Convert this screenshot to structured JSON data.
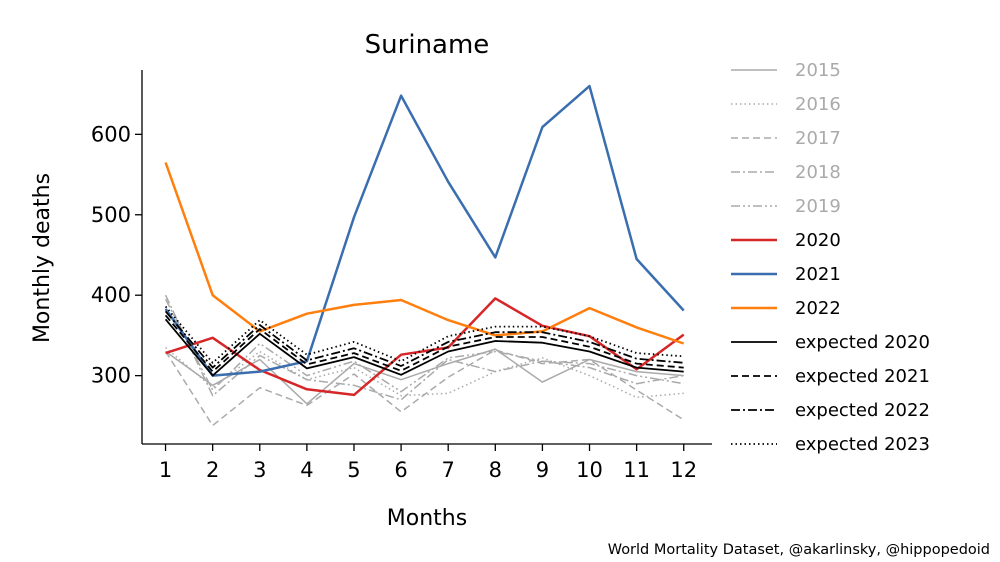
{
  "chart_data": {
    "type": "line",
    "title": "Suriname",
    "xlabel": "Months",
    "ylabel": "Monthly deaths",
    "x": [
      1,
      2,
      3,
      4,
      5,
      6,
      7,
      8,
      9,
      10,
      11,
      12
    ],
    "xlim": [
      0.5,
      12.6
    ],
    "ylim": [
      215,
      680
    ],
    "yticks": [
      300,
      400,
      500,
      600
    ],
    "grid": false,
    "legend_position": "right",
    "series": [
      {
        "name": "2015",
        "color": "#aaaaaa",
        "dash": "solid",
        "width": 1.5,
        "values": [
          330,
          288,
          320,
          265,
          315,
          295,
          315,
          333,
          292,
          320,
          305,
          300
        ]
      },
      {
        "name": "2016",
        "color": "#aaaaaa",
        "dash": "dotted",
        "width": 1.5,
        "values": [
          335,
          285,
          330,
          295,
          310,
          275,
          278,
          305,
          322,
          300,
          273,
          278
        ]
      },
      {
        "name": "2017",
        "color": "#aaaaaa",
        "dash": "dashed",
        "width": 1.5,
        "values": [
          330,
          238,
          285,
          263,
          302,
          255,
          298,
          332,
          315,
          320,
          282,
          245
        ]
      },
      {
        "name": "2018",
        "color": "#aaaaaa",
        "dash": "dashdot",
        "width": 1.5,
        "values": [
          400,
          275,
          325,
          295,
          288,
          270,
          320,
          305,
          318,
          310,
          290,
          300
        ]
      },
      {
        "name": "2019",
        "color": "#aaaaaa",
        "dash": "dashdotdot",
        "width": 1.5,
        "values": [
          395,
          282,
          340,
          300,
          318,
          280,
          322,
          330,
          318,
          315,
          300,
          290
        ]
      },
      {
        "name": "2020",
        "color": "#d62728",
        "dash": "solid",
        "width": 2.5,
        "values": [
          328,
          347,
          307,
          283,
          276,
          326,
          335,
          396,
          362,
          349,
          308,
          351
        ]
      },
      {
        "name": "2021",
        "color": "#3a6eaf",
        "dash": "solid",
        "width": 2.5,
        "values": [
          383,
          300,
          305,
          318,
          497,
          648,
          541,
          447,
          609,
          660,
          445,
          381
        ]
      },
      {
        "name": "2022",
        "color": "#ff7f0e",
        "dash": "solid",
        "width": 2.5,
        "values": [
          565,
          400,
          355,
          377,
          388,
          394,
          369,
          350,
          355,
          384,
          360,
          340
        ]
      },
      {
        "name": "expected 2020",
        "color": "#000000",
        "dash": "solid",
        "width": 1.8,
        "values": [
          370,
          300,
          352,
          309,
          323,
          301,
          330,
          343,
          341,
          330,
          310,
          305
        ]
      },
      {
        "name": "expected 2021",
        "color": "#000000",
        "dash": "dashed",
        "width": 1.8,
        "values": [
          375,
          305,
          358,
          314,
          328,
          306,
          336,
          348,
          348,
          336,
          315,
          310
        ]
      },
      {
        "name": "expected 2022",
        "color": "#000000",
        "dash": "dashdot",
        "width": 1.8,
        "values": [
          380,
          310,
          363,
          319,
          334,
          312,
          342,
          354,
          354,
          342,
          321,
          316
        ]
      },
      {
        "name": "expected 2023",
        "color": "#000000",
        "dash": "dotted",
        "width": 1.8,
        "values": [
          386,
          316,
          369,
          326,
          342,
          318,
          349,
          361,
          361,
          349,
          328,
          324
        ]
      }
    ]
  },
  "source_text": "World Mortality Dataset, @akarlinsky, @hippopedoid"
}
